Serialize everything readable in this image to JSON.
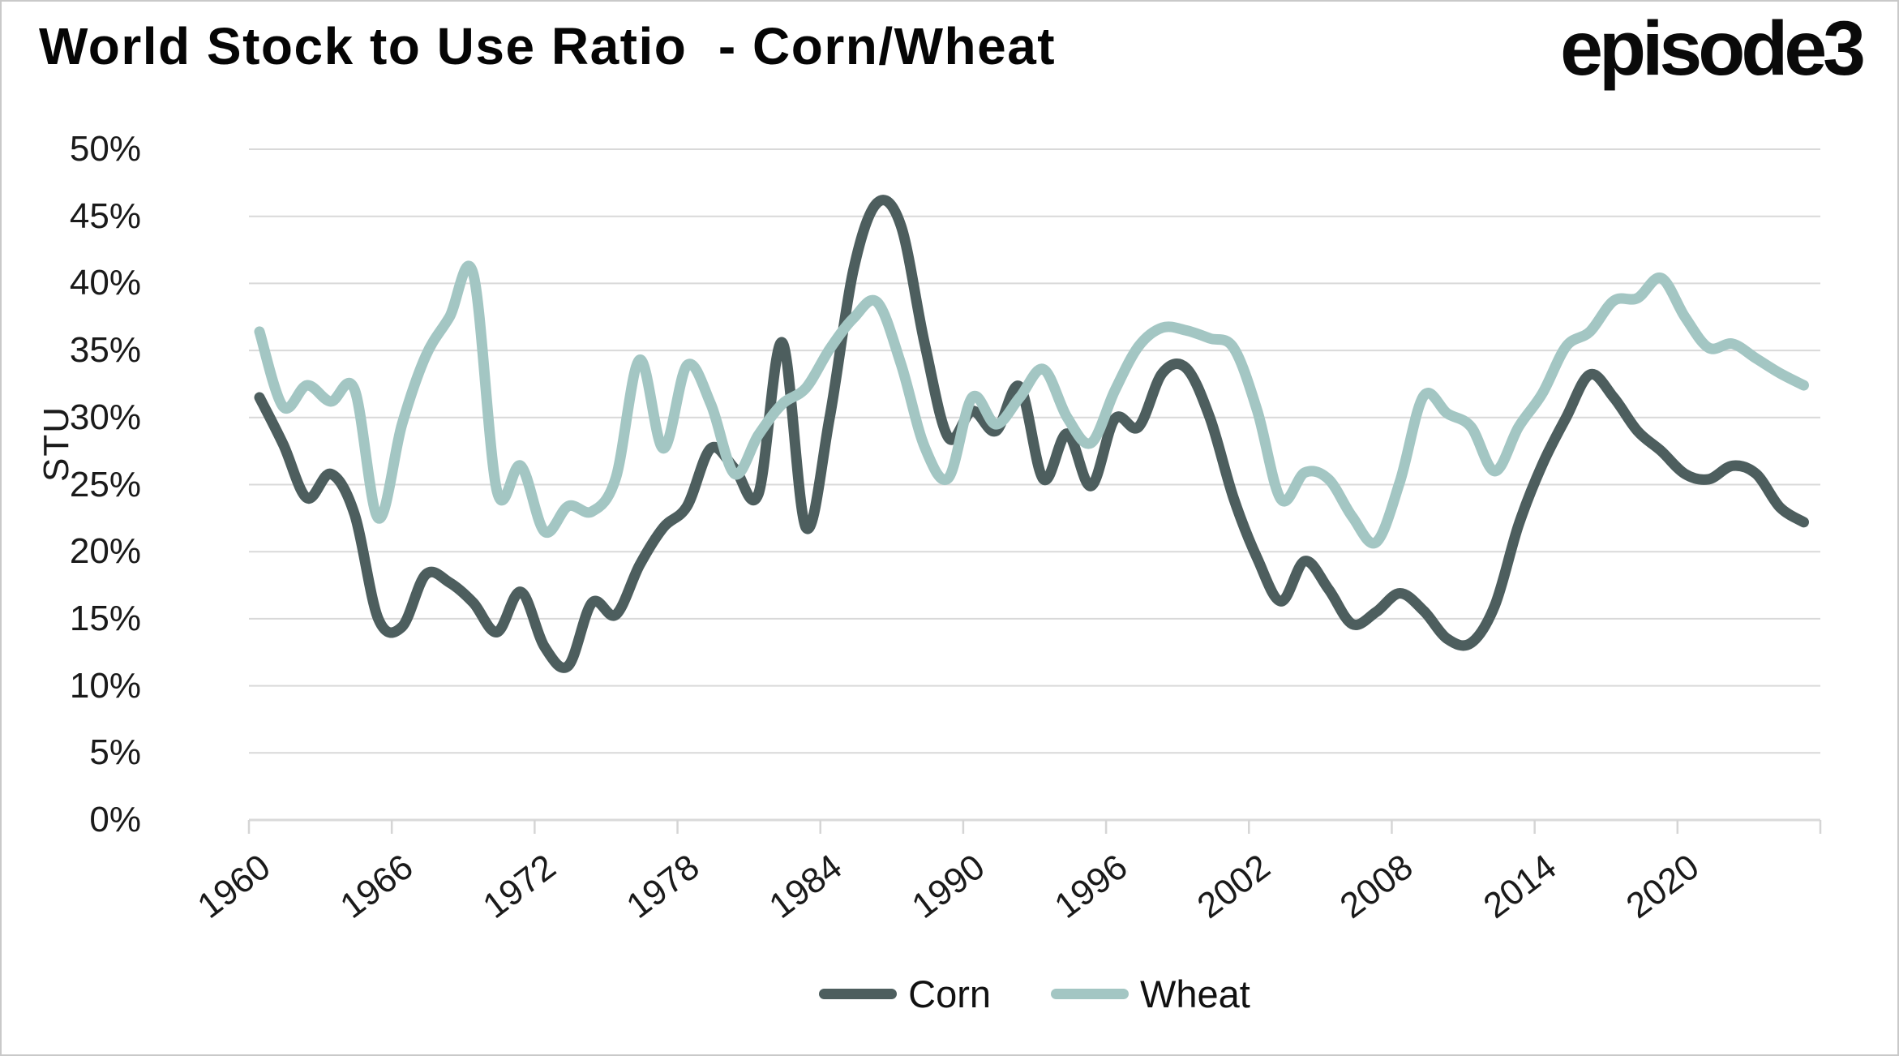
{
  "title": "World Stock to Use Ratio  - Corn/Wheat",
  "logo": "episode3",
  "chart_data": {
    "type": "line",
    "title": "World Stock to Use Ratio  - Corn/Wheat",
    "xlabel": "",
    "ylabel": "STU",
    "ylim": [
      0,
      50
    ],
    "ytick_step": 5,
    "ytick_suffix": "%",
    "grid": "horizontal",
    "legend_position": "bottom-center",
    "x_start_year": 1960,
    "x_end_year": 2025,
    "xtick_labels": [
      "1960",
      "1966",
      "1972",
      "1978",
      "1984",
      "1990",
      "1996",
      "2002",
      "2008",
      "2014",
      "2020"
    ],
    "series": [
      {
        "name": "Corn",
        "color": "#4D5E5E",
        "values": [
          31.5,
          28.0,
          24.0,
          25.8,
          22.8,
          15.0,
          14.4,
          18.3,
          17.7,
          16.2,
          14.0,
          17.0,
          12.9,
          11.5,
          16.2,
          15.3,
          19.0,
          21.8,
          23.4,
          27.7,
          26.2,
          24.3,
          35.6,
          21.8,
          30.0,
          41.0,
          46.0,
          44.3,
          35.5,
          28.5,
          30.5,
          29.0,
          32.3,
          25.4,
          28.8,
          24.9,
          29.9,
          29.3,
          33.3,
          33.7,
          30.0,
          24.0,
          19.5,
          16.3,
          19.3,
          17.2,
          14.6,
          15.5,
          16.9,
          15.6,
          13.5,
          13.2,
          16.0,
          22.0,
          26.5,
          30.0,
          33.2,
          31.5,
          29.0,
          27.5,
          25.8,
          25.4,
          26.4,
          25.8,
          23.3,
          22.2
        ]
      },
      {
        "name": "Wheat",
        "color": "#A3C6C3",
        "values": [
          36.4,
          30.8,
          32.4,
          31.2,
          32.1,
          22.5,
          29.5,
          34.6,
          37.5,
          40.7,
          24.5,
          26.4,
          21.5,
          23.4,
          23.0,
          25.5,
          34.3,
          27.7,
          33.9,
          31.0,
          25.8,
          28.7,
          31.0,
          32.2,
          35.1,
          37.4,
          38.6,
          34.0,
          27.8,
          25.5,
          31.5,
          29.5,
          31.5,
          33.6,
          30.0,
          28.1,
          32.0,
          35.3,
          36.7,
          36.5,
          35.9,
          35.2,
          30.5,
          23.9,
          25.9,
          25.4,
          22.6,
          20.7,
          25.2,
          31.6,
          30.3,
          29.3,
          26.0,
          29.3,
          31.8,
          35.3,
          36.4,
          38.7,
          38.9,
          40.4,
          37.5,
          35.2,
          35.5,
          34.4,
          33.3,
          32.4
        ]
      }
    ],
    "colors": {
      "grid": "#D9D9D9",
      "axis": "#D9D9D9",
      "tick": "#D5D5D5",
      "label_text": "#1A1A1A"
    }
  }
}
